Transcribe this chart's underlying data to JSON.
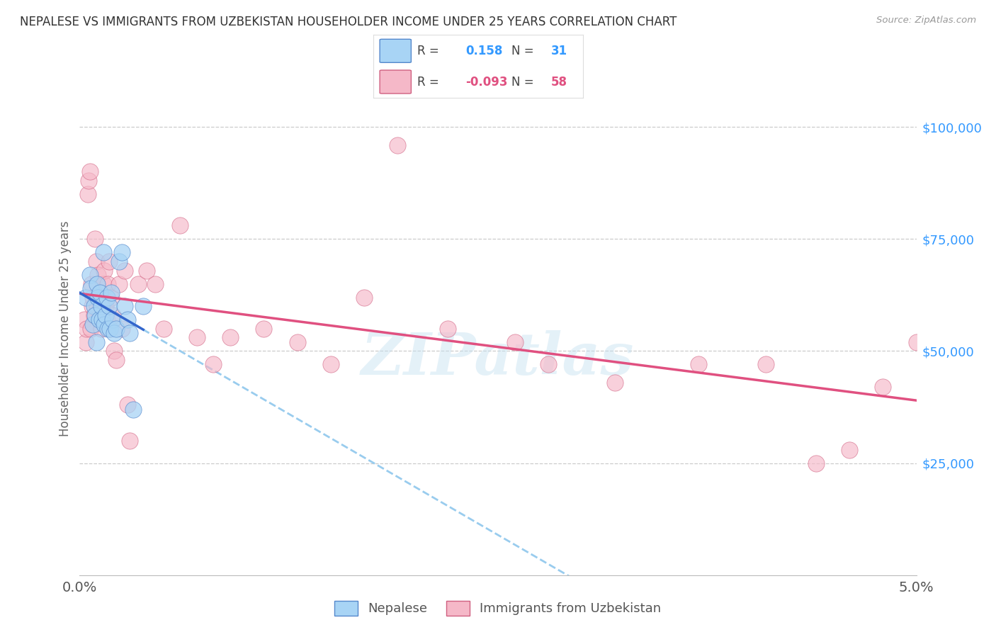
{
  "title": "NEPALESE VS IMMIGRANTS FROM UZBEKISTAN HOUSEHOLDER INCOME UNDER 25 YEARS CORRELATION CHART",
  "source": "Source: ZipAtlas.com",
  "ylabel": "Householder Income Under 25 years",
  "r_nepalese": 0.158,
  "n_nepalese": 31,
  "r_uzbekistan": -0.093,
  "n_uzbekistan": 58,
  "xlim": [
    0.0,
    0.05
  ],
  "ylim": [
    0,
    110000
  ],
  "yticks": [
    25000,
    50000,
    75000,
    100000
  ],
  "ytick_labels": [
    "$25,000",
    "$50,000",
    "$75,000",
    "$100,000"
  ],
  "color_nepalese_fill": "#a8d4f5",
  "color_nepalese_edge": "#5588cc",
  "color_uzbek_fill": "#f5b8c8",
  "color_uzbek_edge": "#d06080",
  "line_blue_solid": "#3366cc",
  "line_pink_solid": "#e05080",
  "line_blue_dashed": "#99ccee",
  "watermark": "ZIPatlas",
  "nepalese_x": [
    0.00038,
    0.0006,
    0.00065,
    0.0008,
    0.00085,
    0.00092,
    0.001,
    0.00105,
    0.0011,
    0.00115,
    0.00122,
    0.00128,
    0.00135,
    0.00142,
    0.00148,
    0.00155,
    0.00162,
    0.00168,
    0.00175,
    0.00182,
    0.0019,
    0.00198,
    0.00205,
    0.0022,
    0.00235,
    0.0025,
    0.00268,
    0.00285,
    0.003,
    0.0032,
    0.0038
  ],
  "nepalese_y": [
    62000,
    67000,
    64000,
    56000,
    60000,
    58000,
    52000,
    65000,
    62000,
    57000,
    63000,
    60000,
    57000,
    72000,
    56000,
    58000,
    62000,
    55000,
    60000,
    55000,
    63000,
    57000,
    54000,
    55000,
    70000,
    72000,
    60000,
    57000,
    54000,
    37000,
    60000
  ],
  "uzbekistan_x": [
    0.00028,
    0.00035,
    0.00042,
    0.0005,
    0.00055,
    0.0006,
    0.00065,
    0.0007,
    0.00075,
    0.0008,
    0.00085,
    0.00092,
    0.001,
    0.00105,
    0.0011,
    0.00115,
    0.00122,
    0.00128,
    0.00135,
    0.00142,
    0.00148,
    0.00155,
    0.00162,
    0.00168,
    0.00175,
    0.00182,
    0.0019,
    0.00198,
    0.00205,
    0.0022,
    0.00235,
    0.0025,
    0.00268,
    0.00285,
    0.003,
    0.0035,
    0.004,
    0.0045,
    0.005,
    0.006,
    0.007,
    0.008,
    0.009,
    0.011,
    0.013,
    0.015,
    0.017,
    0.019,
    0.022,
    0.026,
    0.028,
    0.032,
    0.037,
    0.041,
    0.044,
    0.046,
    0.048,
    0.05
  ],
  "uzbekistan_y": [
    57000,
    52000,
    55000,
    85000,
    88000,
    90000,
    55000,
    65000,
    60000,
    62000,
    58000,
    75000,
    70000,
    60000,
    67000,
    63000,
    58000,
    55000,
    62000,
    65000,
    68000,
    60000,
    57000,
    65000,
    70000,
    55000,
    62000,
    58000,
    50000,
    48000,
    65000,
    55000,
    68000,
    38000,
    30000,
    65000,
    68000,
    65000,
    55000,
    78000,
    53000,
    47000,
    53000,
    55000,
    52000,
    47000,
    62000,
    96000,
    55000,
    52000,
    47000,
    43000,
    47000,
    47000,
    25000,
    28000,
    42000,
    52000
  ]
}
